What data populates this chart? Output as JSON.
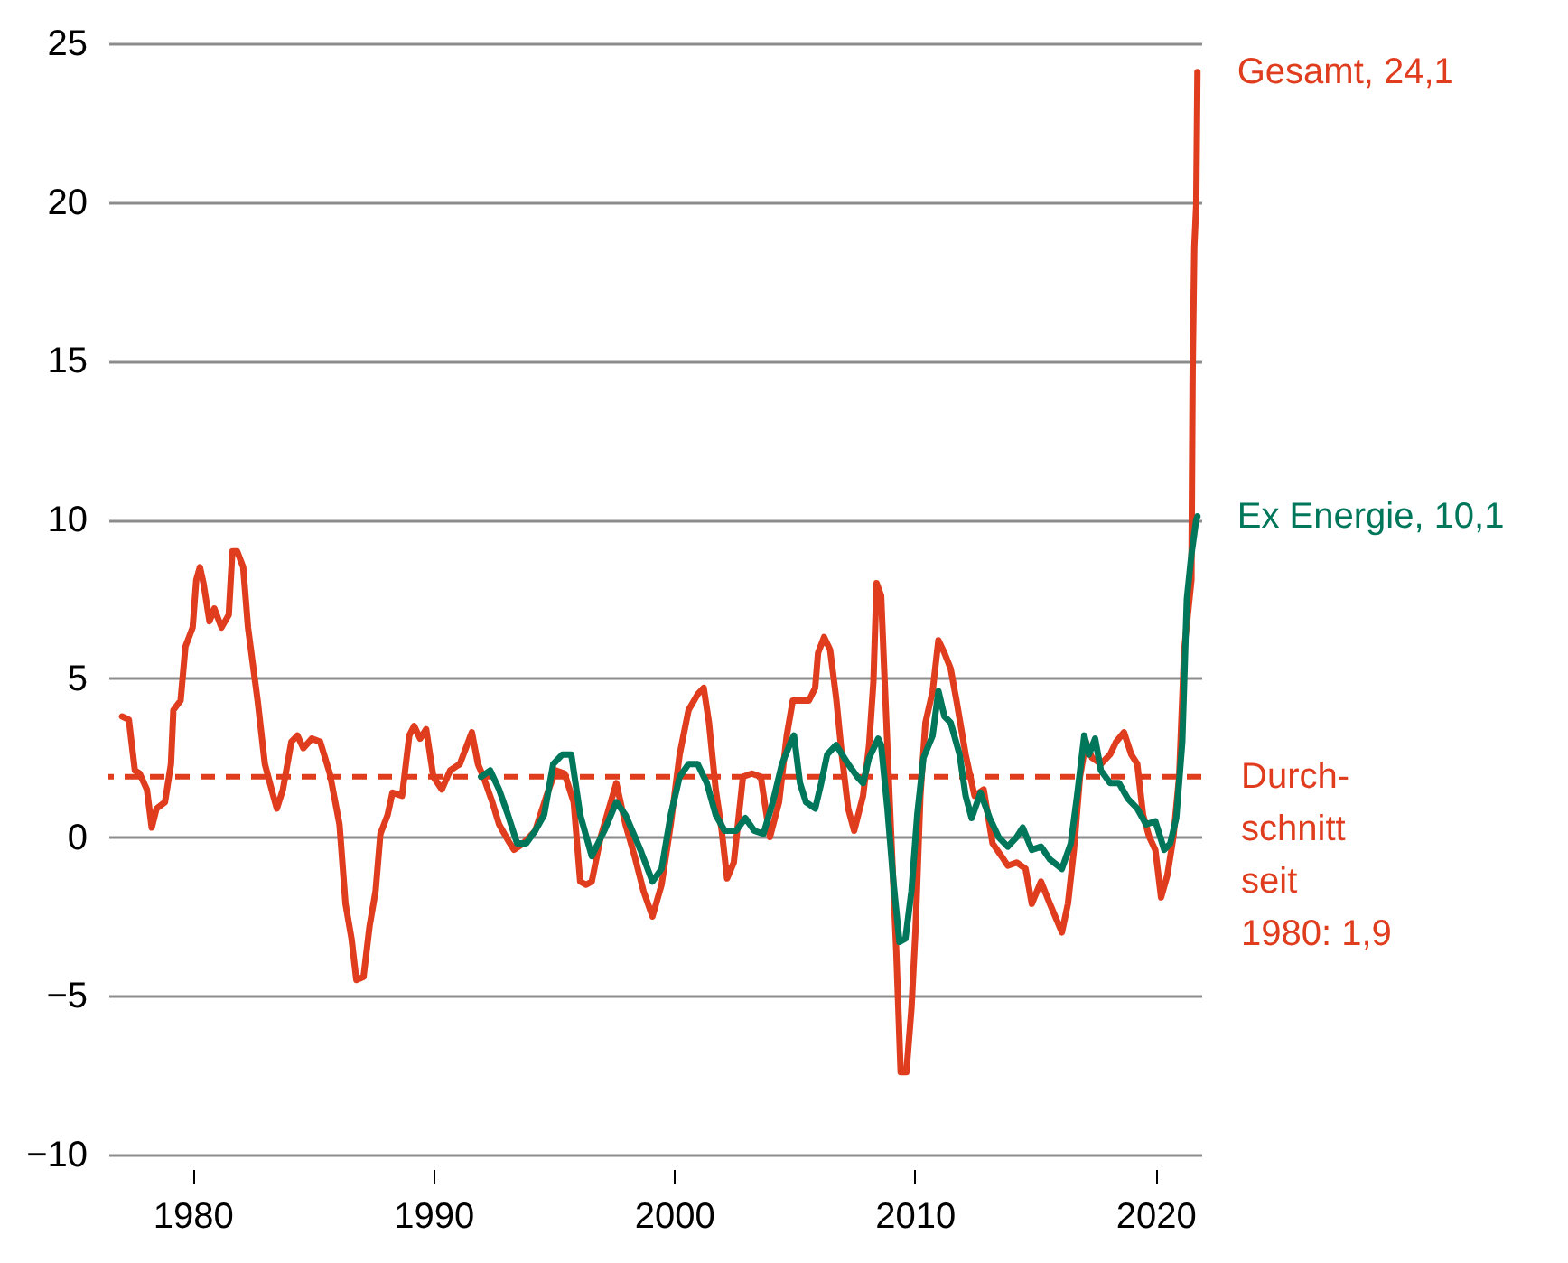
{
  "chart_data": {
    "type": "line",
    "xlim": [
      1976.5,
      2021.9
    ],
    "xticks": [
      1980,
      1990,
      2000,
      2010,
      2020
    ],
    "ylim": [
      -10,
      25
    ],
    "yticks": [
      -10,
      -5,
      0,
      5,
      10,
      15,
      20,
      25
    ],
    "grid": "y",
    "line_style": "solid",
    "marker": "none",
    "series": [
      {
        "color": "#e03c1e",
        "x": [
          1977.07,
          1977.35,
          1977.6,
          1977.8,
          1978.1,
          1978.3,
          1978.5,
          1978.85,
          1979.1,
          1979.2,
          1979.5,
          1979.7,
          1980.0,
          1980.15,
          1980.3,
          1980.45,
          1980.7,
          1980.9,
          1981.2,
          1981.5,
          1981.65,
          1981.85,
          1982.1,
          1982.3,
          1982.7,
          1983.0,
          1983.35,
          1983.5,
          1983.75,
          1984.1,
          1984.35,
          1984.6,
          1984.95,
          1985.3,
          1985.7,
          1986.1,
          1986.35,
          1986.6,
          1986.8,
          1987.1,
          1987.35,
          1987.6,
          1987.8,
          1988.1,
          1988.3,
          1988.7,
          1989.0,
          1989.2,
          1989.45,
          1989.7,
          1990.0,
          1990.35,
          1990.7,
          1991.1,
          1991.6,
          1991.85,
          1992.08,
          1992.45,
          1992.73,
          1993.1,
          1993.35,
          1993.73,
          1994.23,
          1994.7,
          1995.08,
          1995.45,
          1995.83,
          1996.1,
          1996.35,
          1996.58,
          1996.95,
          1997.33,
          1997.6,
          1997.98,
          1998.36,
          1998.73,
          1999.1,
          1999.48,
          1999.86,
          2000.23,
          2000.6,
          2000.98,
          2001.23,
          2001.45,
          2001.73,
          2001.98,
          2002.2,
          2002.48,
          2002.86,
          2003.23,
          2003.6,
          2003.98,
          2004.36,
          2004.68,
          2004.93,
          2005.23,
          2005.6,
          2005.86,
          2005.98,
          2006.23,
          2006.48,
          2006.73,
          2006.98,
          2007.23,
          2007.48,
          2007.85,
          2008.1,
          2008.28,
          2008.41,
          2008.6,
          2008.78,
          2008.98,
          2009.23,
          2009.41,
          2009.65,
          2009.86,
          2010.03,
          2010.23,
          2010.44,
          2010.74,
          2010.98,
          2011.23,
          2011.49,
          2011.73,
          2012.11,
          2012.48,
          2012.86,
          2013.23,
          2013.6,
          2013.86,
          2014.23,
          2014.6,
          2014.86,
          2015.24,
          2015.61,
          2016.11,
          2016.36,
          2016.61,
          2016.86,
          2017.11,
          2017.36,
          2017.73,
          2018.11,
          2018.36,
          2018.69,
          2018.99,
          2019.24,
          2019.48,
          2019.74,
          2019.99,
          2020.23,
          2020.49,
          2020.74,
          2020.98,
          2021.19,
          2021.49,
          2021.54,
          2021.61,
          2021.69,
          2021.74
        ],
        "values": [
          3.8,
          3.7,
          2.1,
          2.0,
          1.5,
          0.3,
          0.9,
          1.1,
          2.3,
          4.0,
          4.3,
          6.0,
          6.6,
          8.1,
          8.5,
          8.0,
          6.8,
          7.2,
          6.6,
          7.0,
          9.0,
          9.0,
          8.5,
          6.6,
          4.3,
          2.3,
          1.3,
          0.9,
          1.5,
          3.0,
          3.2,
          2.8,
          3.1,
          3.0,
          2.0,
          0.4,
          -2.1,
          -3.2,
          -4.5,
          -4.4,
          -2.8,
          -1.7,
          0.1,
          0.7,
          1.4,
          1.3,
          3.2,
          3.5,
          3.1,
          3.4,
          1.9,
          1.5,
          2.1,
          2.3,
          3.3,
          2.3,
          1.9,
          1.1,
          0.4,
          -0.1,
          -0.4,
          -0.2,
          0.2,
          1.3,
          2.1,
          2.0,
          1.1,
          -1.4,
          -1.5,
          -1.4,
          0.0,
          1.0,
          1.7,
          0.4,
          -0.6,
          -1.7,
          -2.5,
          -1.5,
          0.4,
          2.6,
          4.0,
          4.5,
          4.7,
          3.6,
          1.5,
          0.2,
          -1.3,
          -0.8,
          1.9,
          2.0,
          1.9,
          0.0,
          1.1,
          3.2,
          4.3,
          4.3,
          4.3,
          4.7,
          5.8,
          6.3,
          5.9,
          4.4,
          2.5,
          0.9,
          0.2,
          1.3,
          2.9,
          4.9,
          8.0,
          7.6,
          4.3,
          0.7,
          -3.6,
          -7.4,
          -7.4,
          -5.4,
          -2.9,
          1.3,
          3.6,
          4.6,
          6.2,
          5.8,
          5.3,
          4.3,
          2.6,
          1.3,
          1.5,
          -0.2,
          -0.6,
          -0.9,
          -0.8,
          -1.0,
          -2.1,
          -1.4,
          -2.1,
          -3.0,
          -2.1,
          -0.4,
          1.9,
          3.0,
          2.5,
          2.3,
          2.6,
          3.0,
          3.3,
          2.6,
          2.3,
          0.7,
          0.0,
          -0.4,
          -1.9,
          -1.2,
          0.0,
          1.9,
          5.9,
          8.1,
          14.6,
          18.6,
          19.9,
          24.1
        ]
      },
      {
        "color": "#00775b",
        "x": [
          1991.98,
          1992.36,
          1992.73,
          1993.1,
          1993.48,
          1993.86,
          1994.23,
          1994.6,
          1994.98,
          1995.36,
          1995.73,
          1996.1,
          1996.58,
          1997.1,
          1997.6,
          1997.98,
          1998.6,
          1999.1,
          1999.48,
          1999.86,
          2000.23,
          2000.6,
          2000.98,
          2001.36,
          2001.73,
          2002.1,
          2002.58,
          2002.96,
          2003.33,
          2003.71,
          2004.1,
          2004.48,
          2004.85,
          2004.98,
          2005.23,
          2005.48,
          2005.86,
          2006.11,
          2006.36,
          2006.73,
          2007.23,
          2007.61,
          2007.85,
          2008.1,
          2008.48,
          2008.6,
          2008.86,
          2009.11,
          2009.36,
          2009.61,
          2009.86,
          2010.1,
          2010.36,
          2010.74,
          2010.98,
          2011.23,
          2011.49,
          2011.86,
          2012.11,
          2012.36,
          2012.73,
          2013.11,
          2013.48,
          2013.86,
          2014.23,
          2014.48,
          2014.86,
          2015.24,
          2015.61,
          2016.11,
          2016.48,
          2016.74,
          2017.04,
          2017.23,
          2017.49,
          2017.73,
          2018.11,
          2018.48,
          2018.86,
          2019.24,
          2019.61,
          2019.99,
          2020.36,
          2020.61,
          2020.86,
          2021.11,
          2021.3,
          2021.49,
          2021.69,
          2021.74
        ],
        "values": [
          1.9,
          2.1,
          1.5,
          0.7,
          -0.2,
          -0.2,
          0.2,
          0.7,
          2.3,
          2.6,
          2.6,
          0.7,
          -0.6,
          0.2,
          1.1,
          0.7,
          -0.4,
          -1.4,
          -1.0,
          0.7,
          1.9,
          2.3,
          2.3,
          1.7,
          0.7,
          0.2,
          0.2,
          0.6,
          0.2,
          0.1,
          1.1,
          2.3,
          3.0,
          3.2,
          1.7,
          1.1,
          0.9,
          1.7,
          2.6,
          2.9,
          2.3,
          1.9,
          1.7,
          2.5,
          3.1,
          2.9,
          0.9,
          -1.4,
          -3.3,
          -3.2,
          -1.7,
          0.7,
          2.5,
          3.2,
          4.6,
          3.8,
          3.6,
          2.6,
          1.3,
          0.6,
          1.4,
          0.6,
          0.0,
          -0.3,
          0.0,
          0.3,
          -0.4,
          -0.3,
          -0.7,
          -1.0,
          -0.2,
          1.3,
          3.2,
          2.6,
          3.1,
          2.1,
          1.7,
          1.7,
          1.2,
          0.9,
          0.4,
          0.5,
          -0.4,
          -0.2,
          0.6,
          3.0,
          7.5,
          8.9,
          10.0,
          10.1
        ]
      }
    ],
    "ref_lines": [
      {
        "axis": "y",
        "value": 1.9,
        "label": "Durch-\nschnitt\nseit\n1980: 1,9",
        "color": "#e03c1e",
        "line_style": "dashed"
      }
    ],
    "annotations": [
      {
        "text": "Gesamt, 24,1",
        "x": 2021.74,
        "y": 24.1
      },
      {
        "text": "Ex Energie, 10,1",
        "x": 2021.74,
        "y": 10.1
      }
    ]
  }
}
